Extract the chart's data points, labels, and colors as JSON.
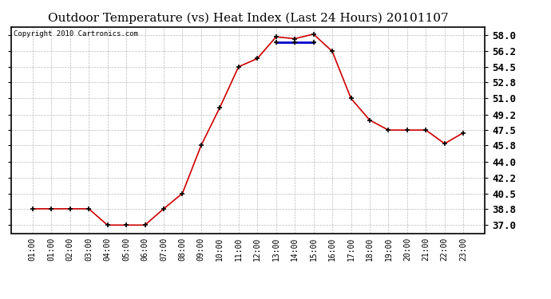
{
  "title": "Outdoor Temperature (vs) Heat Index (Last 24 Hours) 20101107",
  "copyright": "Copyright 2010 Cartronics.com",
  "x_labels": [
    "01:00",
    "01:00",
    "02:00",
    "03:00",
    "04:00",
    "05:00",
    "06:00",
    "07:00",
    "08:00",
    "09:00",
    "10:00",
    "11:00",
    "12:00",
    "13:00",
    "14:00",
    "15:00",
    "16:00",
    "17:00",
    "18:00",
    "19:00",
    "20:00",
    "21:00",
    "22:00",
    "23:00"
  ],
  "temp_values": [
    38.8,
    38.8,
    38.8,
    38.8,
    37.0,
    37.0,
    37.0,
    38.8,
    40.5,
    45.8,
    50.0,
    54.5,
    55.4,
    57.8,
    57.6,
    58.1,
    56.2,
    51.0,
    48.6,
    47.5,
    47.5,
    47.5,
    46.0,
    47.2
  ],
  "heat_values": [
    null,
    null,
    null,
    null,
    null,
    null,
    null,
    null,
    null,
    null,
    null,
    null,
    null,
    57.2,
    57.2,
    57.2,
    null,
    null,
    null,
    null,
    null,
    null,
    null,
    null
  ],
  "y_ticks": [
    37.0,
    38.8,
    40.5,
    42.2,
    44.0,
    45.8,
    47.5,
    49.2,
    51.0,
    52.8,
    54.5,
    56.2,
    58.0
  ],
  "ylim": [
    36.1,
    58.9
  ],
  "line_color": "#cc0000",
  "heat_color": "#0000cc",
  "marker": "+",
  "bg_color": "#ffffff",
  "grid_color": "#aaaaaa",
  "title_fontsize": 11,
  "copyright_fontsize": 6.5,
  "ytick_fontsize": 9,
  "xtick_fontsize": 7
}
